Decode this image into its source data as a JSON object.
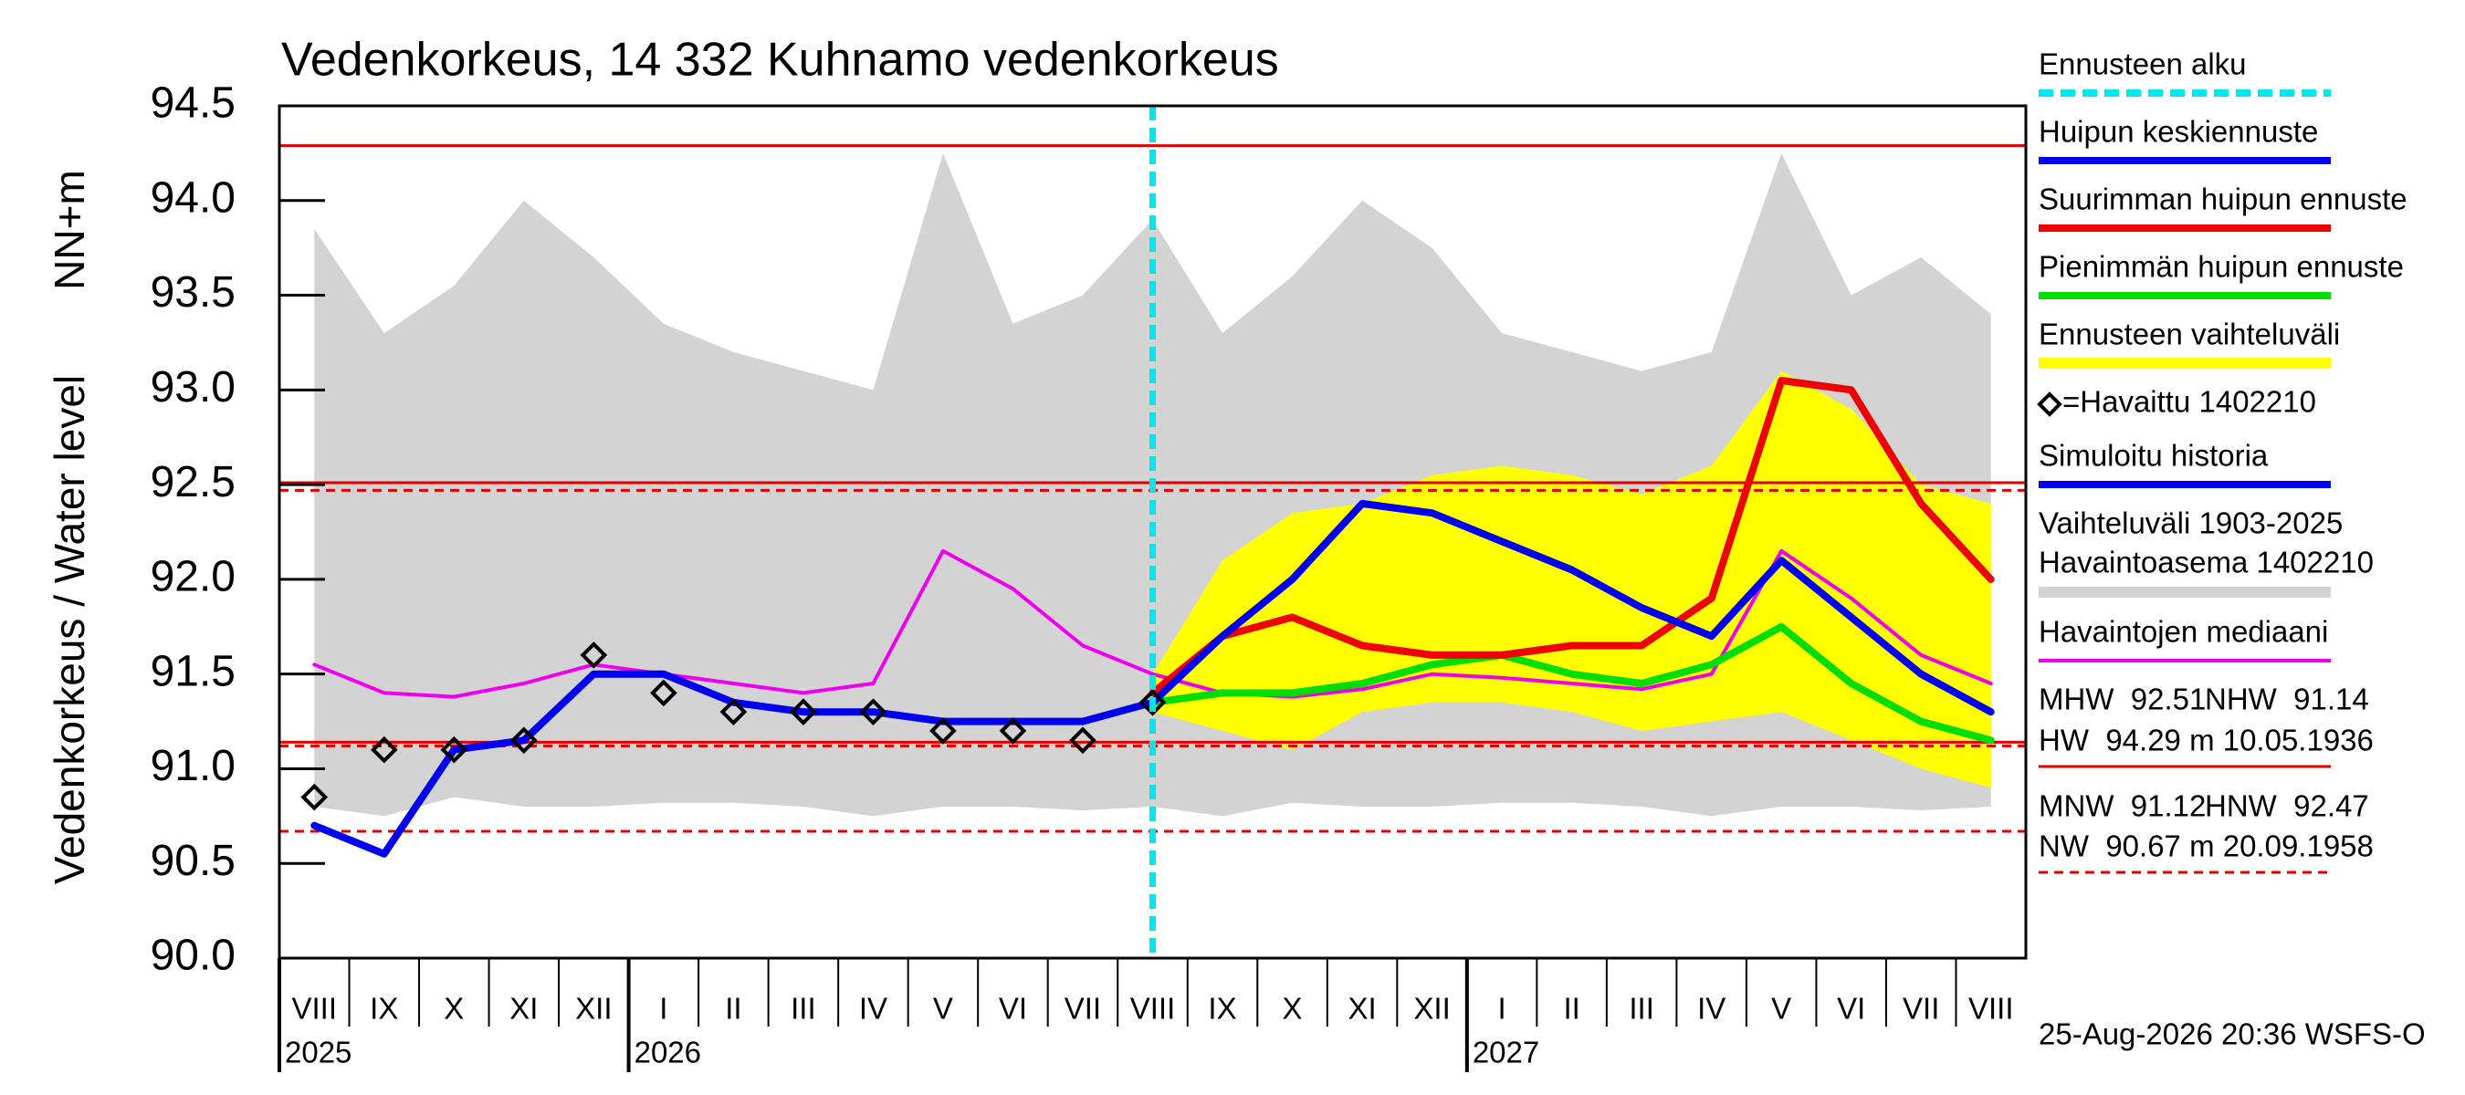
{
  "chart_data": {
    "type": "line",
    "title": "Vedenkorkeus, 14 332 Kuhnamo vedenkorkeus",
    "y_label": "Vedenkorkeus / Water level",
    "y_unit": "NN+m",
    "categories": [
      "VIII",
      "IX",
      "X",
      "XI",
      "XII",
      "I",
      "II",
      "III",
      "IV",
      "V",
      "VI",
      "VII",
      "VIII",
      "IX",
      "X",
      "XI",
      "XII",
      "I",
      "II",
      "III",
      "IV",
      "V",
      "VI",
      "VII",
      "VIII"
    ],
    "years": [
      "2025",
      "2026",
      "2027"
    ],
    "ylim": [
      90,
      94.5
    ],
    "yticks": [
      {
        "value": 90,
        "label": "90.0"
      },
      90.5,
      {
        "value": 91,
        "label": "91.0"
      },
      91.5,
      {
        "value": 92,
        "label": "92.0"
      },
      92.5,
      {
        "value": 93,
        "label": "93.0"
      },
      93.5,
      {
        "value": 94,
        "label": "94.0"
      },
      94.5
    ],
    "grid": false,
    "series": [
      {
        "name": "Ennusteen alku",
        "kind": "vline",
        "color": "#00e5ee",
        "dash": true
      },
      {
        "name": "Huipun keskiennuste",
        "kind": "line",
        "color": "#0000ee",
        "values": [
          null,
          null,
          null,
          null,
          null,
          null,
          null,
          null,
          null,
          null,
          null,
          null,
          91.35,
          91.7,
          92.0,
          92.4,
          92.35,
          92.2,
          92.05,
          91.85,
          91.7,
          92.1,
          91.8,
          91.5,
          91.3
        ]
      },
      {
        "name": "Suurimman huipun ennuste",
        "kind": "line",
        "color": "#ee0000",
        "values": [
          null,
          null,
          null,
          null,
          null,
          null,
          null,
          null,
          null,
          null,
          null,
          null,
          91.4,
          91.7,
          91.8,
          91.65,
          91.6,
          91.6,
          91.65,
          91.65,
          91.9,
          93.05,
          93.0,
          92.4,
          92.0
        ]
      },
      {
        "name": "Pienimmän huipun ennuste",
        "kind": "line",
        "color": "#00dd00",
        "values": [
          null,
          null,
          null,
          null,
          null,
          null,
          null,
          null,
          null,
          null,
          null,
          null,
          91.35,
          91.4,
          91.4,
          91.45,
          91.55,
          91.6,
          91.5,
          91.45,
          91.55,
          91.75,
          91.45,
          91.25,
          91.15
        ]
      },
      {
        "name": [
          "Ennusteen vaihteluväli"
        ],
        "kind": "band",
        "color": "#ffff00",
        "low": [
          null,
          null,
          null,
          null,
          null,
          null,
          null,
          null,
          null,
          null,
          null,
          null,
          91.3,
          91.2,
          91.1,
          91.3,
          91.35,
          91.35,
          91.3,
          91.2,
          91.25,
          91.3,
          91.15,
          91.0,
          90.9
        ],
        "high": [
          null,
          null,
          null,
          null,
          null,
          null,
          null,
          null,
          null,
          null,
          null,
          null,
          91.5,
          92.1,
          92.35,
          92.4,
          92.55,
          92.6,
          92.55,
          92.45,
          92.6,
          93.1,
          92.9,
          92.5,
          92.4
        ]
      },
      {
        "name": "=Havaittu 1402210",
        "kind": "scatter",
        "color": "#000000",
        "values": [
          90.85,
          91.1,
          91.1,
          91.15,
          91.6,
          91.4,
          91.3,
          91.3,
          91.3,
          91.2,
          91.2,
          91.15,
          91.35,
          null,
          null,
          null,
          null,
          null,
          null,
          null,
          null,
          null,
          null,
          null,
          null
        ]
      },
      {
        "name": "Simuloitu historia",
        "kind": "line",
        "color": "#0000ee",
        "values": [
          90.7,
          90.55,
          91.1,
          91.15,
          91.5,
          91.5,
          91.35,
          91.3,
          91.3,
          91.25,
          91.25,
          91.25,
          91.35,
          null,
          null,
          null,
          null,
          null,
          null,
          null,
          null,
          null,
          null,
          null,
          null
        ]
      },
      {
        "name": [
          "Vaihteluväli 1903-2025",
          "Havaintoasema 1402210"
        ],
        "kind": "band",
        "color": "#d3d3d3",
        "low": [
          90.8,
          90.75,
          90.85,
          90.8,
          90.8,
          90.82,
          90.82,
          90.8,
          90.75,
          90.8,
          90.8,
          90.78,
          90.8,
          90.75,
          90.82,
          90.8,
          90.8,
          90.82,
          90.82,
          90.8,
          90.75,
          90.8,
          90.8,
          90.78,
          90.8
        ],
        "high": [
          93.85,
          93.3,
          93.55,
          94.0,
          93.7,
          93.35,
          93.2,
          93.1,
          93.0,
          94.25,
          93.35,
          93.5,
          93.9,
          93.3,
          93.6,
          94.0,
          93.75,
          93.3,
          93.2,
          93.1,
          93.2,
          94.25,
          93.5,
          93.7,
          93.4
        ]
      },
      {
        "name": "Havaintojen mediaani",
        "kind": "line",
        "color": "#ee00ee",
        "values": [
          91.55,
          91.4,
          91.38,
          91.45,
          91.55,
          91.5,
          91.45,
          91.4,
          91.45,
          92.15,
          91.95,
          91.65,
          91.5,
          91.4,
          91.38,
          91.42,
          91.5,
          91.48,
          91.45,
          91.42,
          91.5,
          92.15,
          91.9,
          91.6,
          91.45
        ]
      }
    ],
    "reference_lines": [
      {
        "value": 92.51,
        "label": "MHW  92.51",
        "dash": false
      },
      {
        "value": 91.14,
        "label": "NHW  91.14",
        "dash": false
      },
      {
        "value": 94.29,
        "label": "HW  94.29 m 10.05.1936",
        "dash": false
      },
      {
        "value": 91.12,
        "label": "MNW  91.12",
        "dash": true
      },
      {
        "value": 92.47,
        "label": "HNW  92.47",
        "dash": true
      },
      {
        "value": 90.67,
        "label": "NW  90.67 m 20.09.1958",
        "dash": true
      }
    ],
    "reference_color": "#e00000",
    "footer": "25-Aug-2026 20:36 WSFS-O"
  }
}
